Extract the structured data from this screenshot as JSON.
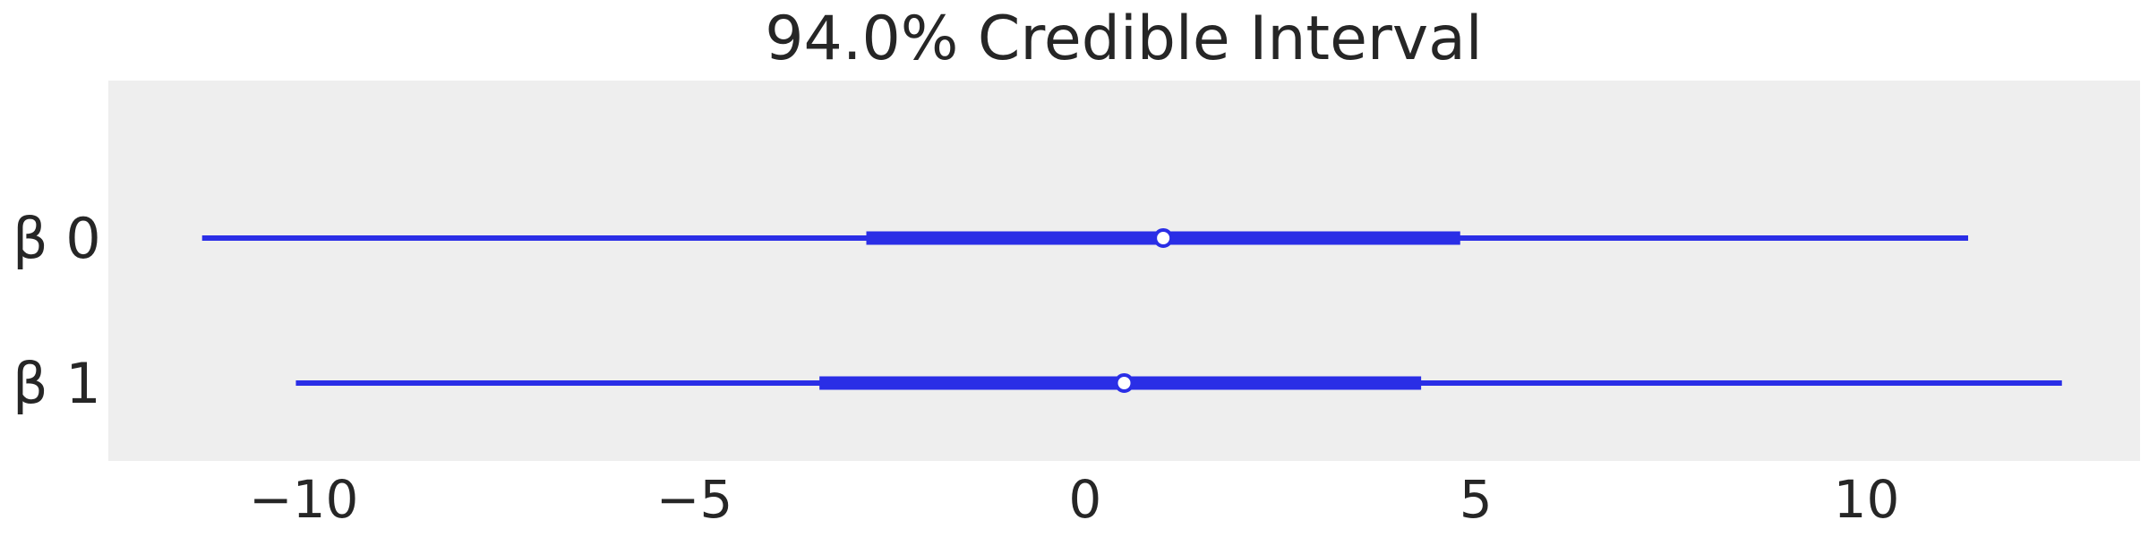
{
  "chart_data": {
    "type": "forest",
    "title": "94.0% Credible Interval",
    "xlim": [
      -12.5,
      13.5
    ],
    "xticks": [
      -10,
      -5,
      0,
      5,
      10
    ],
    "xtick_labels": [
      "−10",
      "−5",
      "0",
      "5",
      "10"
    ],
    "grid": false,
    "categories": [
      "β 0",
      "β 1"
    ],
    "intervals": [
      {
        "label": "β 0",
        "hdi_94_low": -11.3,
        "hdi_94_high": 11.3,
        "iqr_low": -2.8,
        "iqr_high": 4.8,
        "point_estimate": 1.0
      },
      {
        "label": "β 1",
        "hdi_94_low": -10.1,
        "hdi_94_high": 12.5,
        "iqr_low": -3.4,
        "iqr_high": 4.3,
        "point_estimate": 0.5
      }
    ],
    "colors": {
      "interval": "#2a2ee6",
      "plot_background": "#eeeeee",
      "marker_fill": "#ffffff",
      "text": "#262626"
    }
  }
}
